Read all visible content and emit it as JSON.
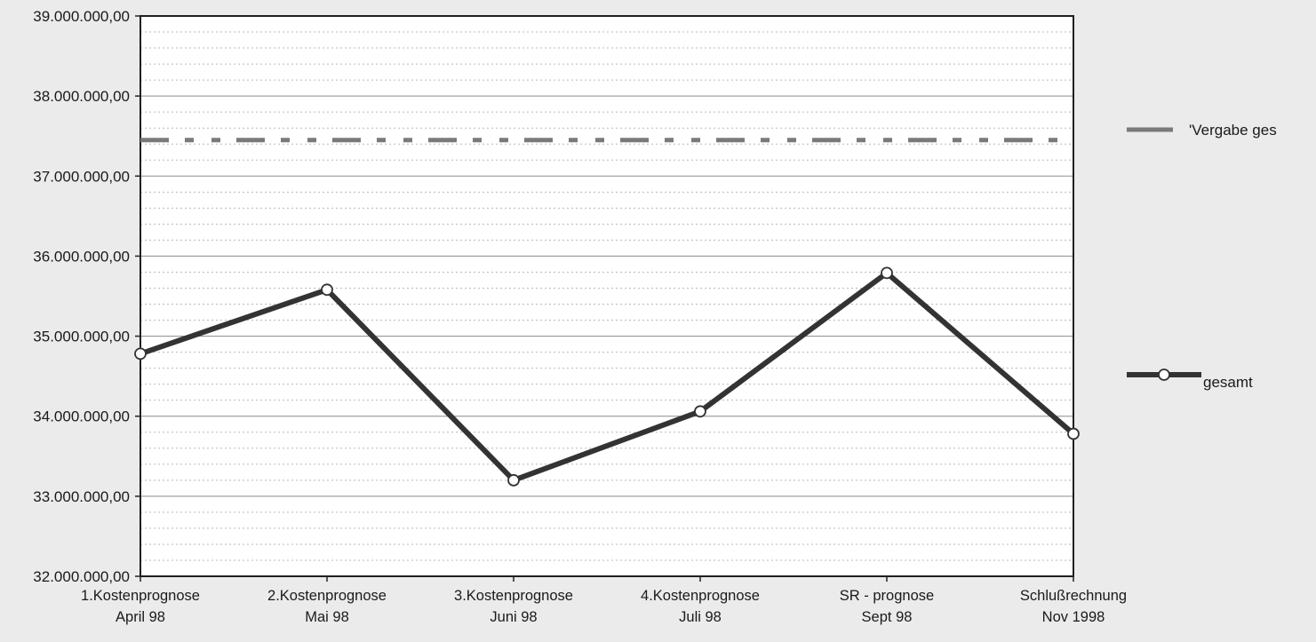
{
  "chart_data": {
    "type": "line",
    "categories": [
      [
        "1.Kostenprognose",
        "April 98"
      ],
      [
        "2.Kostenprognose",
        "Mai 98"
      ],
      [
        "3.Kostenprognose",
        "Juni 98"
      ],
      [
        "4.Kostenprognose",
        "Juli 98"
      ],
      [
        "SR - prognose",
        "Sept 98"
      ],
      [
        "Schlußrechnung",
        "Nov 1998"
      ]
    ],
    "series": [
      {
        "name": "'Vergabe ges",
        "style": "dashed",
        "color": "#7a7a7a",
        "values": [
          37450000,
          37450000,
          37450000,
          37450000,
          37450000,
          37450000
        ]
      },
      {
        "name": "gesamt",
        "style": "solid-marker",
        "color": "#333333",
        "values": [
          34780000,
          35580000,
          33200000,
          34060000,
          35790000,
          33780000
        ]
      }
    ],
    "ylim": [
      32000000,
      39000000
    ],
    "ytick_step": 1000000,
    "ytick_labels": [
      "32.000.000,00",
      "33.000.000,00",
      "34.000.000,00",
      "35.000.000,00",
      "36.000.000,00",
      "37.000.000,00",
      "38.000.000,00",
      "39.000.000,00"
    ],
    "grid": true,
    "legend_position": "right",
    "title": "",
    "xlabel": "",
    "ylabel": ""
  }
}
